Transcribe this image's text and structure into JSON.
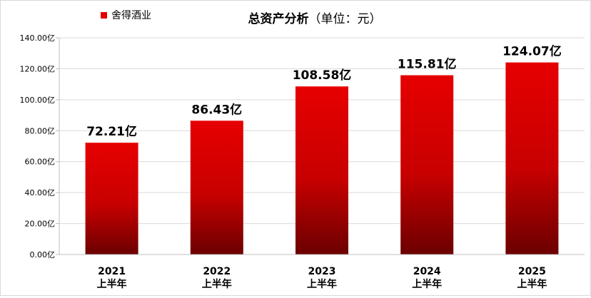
{
  "chart_data": {
    "type": "bar",
    "title": "总资产分析",
    "title_unit": "（单位：元）",
    "legend": {
      "label": "舍得酒业",
      "position": "top-left"
    },
    "categories": [
      {
        "year": "2021",
        "period": "上半年"
      },
      {
        "year": "2022",
        "period": "上半年"
      },
      {
        "year": "2023",
        "period": "上半年"
      },
      {
        "year": "2024",
        "period": "上半年"
      },
      {
        "year": "2025",
        "period": "上半年"
      }
    ],
    "series": [
      {
        "name": "舍得酒业",
        "values": [
          72.21,
          86.43,
          108.58,
          115.81,
          124.07
        ],
        "labels": [
          "72.21亿",
          "86.43亿",
          "108.58亿",
          "115.81亿",
          "124.07亿"
        ]
      }
    ],
    "yticks": [
      "0.00亿",
      "20.00亿",
      "40.00亿",
      "60.00亿",
      "80.00亿",
      "100.00亿",
      "120.00亿",
      "140.00亿"
    ],
    "ylim": [
      0,
      140
    ],
    "ystep": 20,
    "grid": true,
    "colors": {
      "bar_top": "#e60000",
      "bar_mid": "#d00000",
      "bar_bottom": "#6b0000",
      "grid": "#d9d9d9",
      "text": "#000000"
    }
  }
}
